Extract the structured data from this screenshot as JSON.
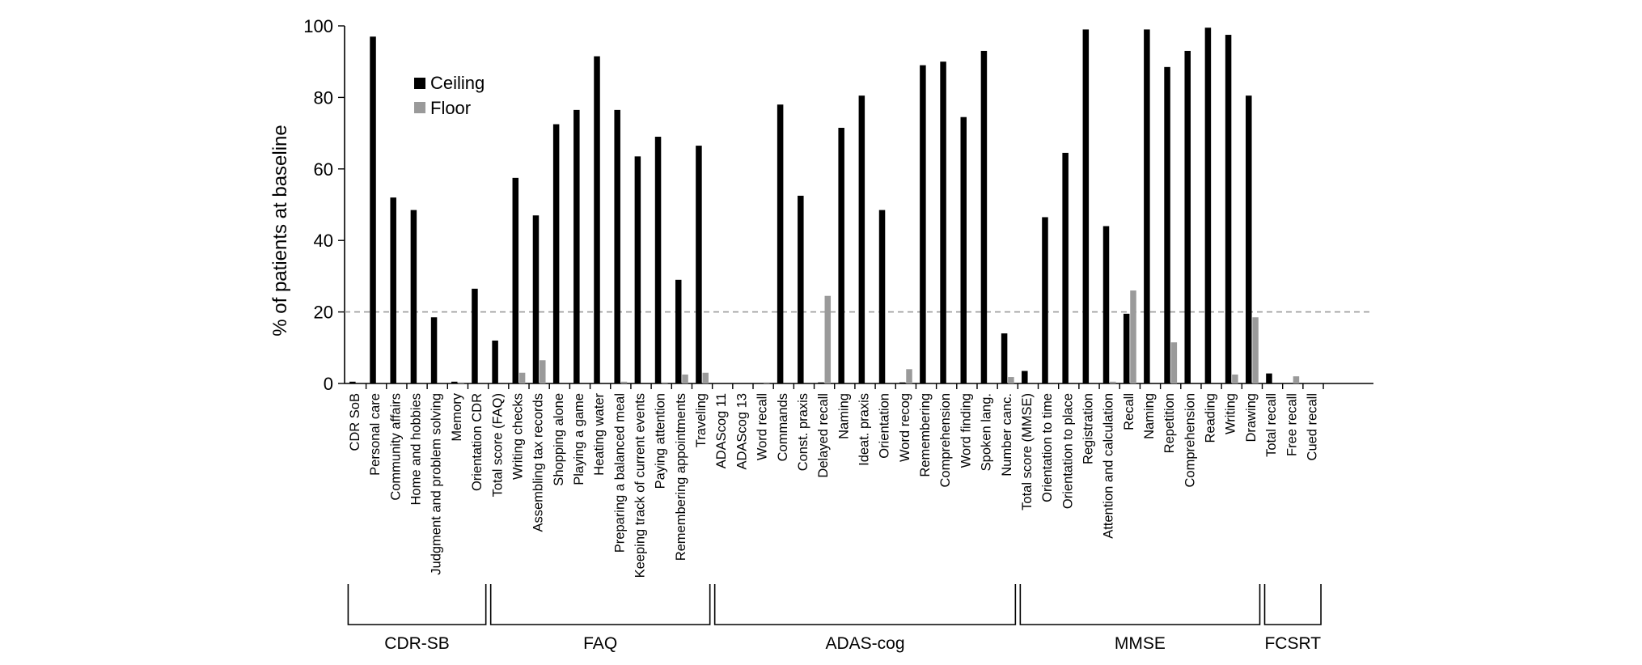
{
  "chart_data": {
    "type": "bar",
    "title": "",
    "ylabel": "% of patients at baseline",
    "ylim": [
      0,
      100
    ],
    "yticks": [
      0,
      20,
      40,
      60,
      80,
      100
    ],
    "reference_line": 20,
    "legend_position": "top-left",
    "categories": [
      "CDR SoB",
      "Personal care",
      "Community affairs",
      "Home and hobbies",
      "Judgment and problem solving",
      "Memory",
      "Orientation CDR",
      "Total score (FAQ)",
      "Writing checks",
      "Assembling tax records",
      "Shopping alone",
      "Playing a game",
      "Heating water",
      "Preparing a balanced meal",
      "Keeping track of current events",
      "Paying attention",
      "Remembering appointments",
      "Traveling",
      "ADAScog 11",
      "ADAScog 13",
      "Word recall",
      "Commands",
      "Const. praxis",
      "Delayed recall",
      "Naming",
      "Ideat. praxis",
      "Orientation",
      "Word recog",
      "Remembering",
      "Comprehension",
      "Word finding",
      "Spoken lang.",
      "Number canc.",
      "Total score (MMSE)",
      "Orientation to time",
      "Orientation to place",
      "Registration",
      "Attention and calculation",
      "Recall",
      "Naming",
      "Repetition",
      "Comprehension",
      "Reading",
      "Writing",
      "Drawing",
      "Total recall",
      "Free recall",
      "Cued recall"
    ],
    "series": [
      {
        "name": "Ceiling",
        "color": "#000000",
        "values": [
          0.5,
          97,
          52,
          48.5,
          18.5,
          0.5,
          26.5,
          12,
          57.5,
          47,
          72.5,
          76.5,
          91.5,
          76.5,
          63.5,
          69,
          29,
          66.5,
          0,
          0,
          0,
          78,
          52.5,
          0.3,
          71.5,
          80.5,
          48.5,
          0.3,
          89,
          90,
          74.5,
          93,
          14,
          3.5,
          46.5,
          64.5,
          99,
          44,
          19.5,
          99,
          88.5,
          93,
          99.5,
          97.5,
          80.5,
          2.8,
          0,
          0
        ]
      },
      {
        "name": "Floor",
        "color": "#9a9a9a",
        "values": [
          0,
          0,
          0,
          0,
          0,
          0.3,
          0,
          0,
          3,
          6.5,
          0,
          0,
          0,
          0.5,
          0,
          0.3,
          2.5,
          3,
          0,
          0,
          0.3,
          0,
          0,
          24.5,
          0,
          0,
          0,
          4,
          0,
          0,
          0,
          0,
          1.8,
          0,
          0,
          0,
          0,
          0.5,
          26,
          0,
          11.5,
          0,
          0,
          2.5,
          18.5,
          0,
          2,
          0
        ]
      }
    ],
    "groups": [
      {
        "label": "CDR-SB",
        "start": 0,
        "end": 6
      },
      {
        "label": "FAQ",
        "start": 7,
        "end": 17
      },
      {
        "label": "ADAS-cog",
        "start": 18,
        "end": 32
      },
      {
        "label": "MMSE",
        "start": 33,
        "end": 44
      },
      {
        "label": "FCSRT",
        "start": 45,
        "end": 47
      }
    ]
  }
}
